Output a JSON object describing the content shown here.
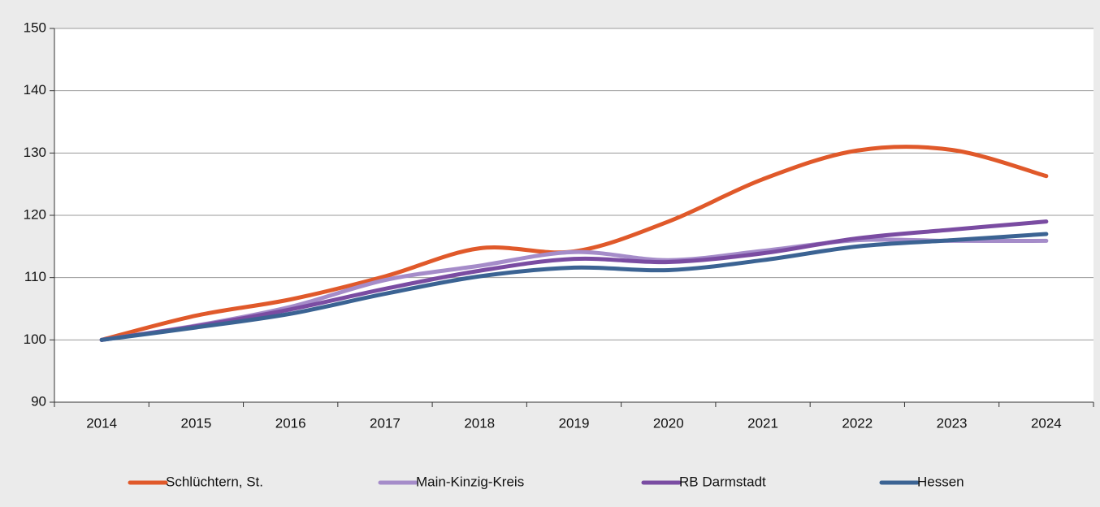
{
  "chart_data": {
    "type": "line",
    "categories": [
      "2014",
      "2015",
      "2016",
      "2017",
      "2018",
      "2019",
      "2020",
      "2021",
      "2022",
      "2023",
      "2024"
    ],
    "series": [
      {
        "name": "Schlüchtern, St.",
        "color": "#e0592a",
        "values": [
          100,
          103.9,
          106.5,
          110.2,
          114.7,
          114.2,
          119.0,
          125.8,
          130.4,
          130.5,
          126.3
        ]
      },
      {
        "name": "Main-Kinzig-Kreis",
        "color": "#a58cc9",
        "values": [
          100,
          102.3,
          105.3,
          109.6,
          111.9,
          114.1,
          112.8,
          114.3,
          116.0,
          115.9,
          115.9
        ]
      },
      {
        "name": "RB Darmstadt",
        "color": "#7a4ca2",
        "values": [
          100,
          102.2,
          104.9,
          108.2,
          111.1,
          113.0,
          112.5,
          113.9,
          116.3,
          117.7,
          119.0
        ]
      },
      {
        "name": "Hessen",
        "color": "#3b6393",
        "values": [
          100,
          102.0,
          104.2,
          107.4,
          110.2,
          111.6,
          111.2,
          112.8,
          115.0,
          116.0,
          117.0
        ]
      }
    ],
    "ylim": [
      90,
      150
    ],
    "yticks": [
      90,
      100,
      110,
      120,
      130,
      140,
      150
    ],
    "grid": true,
    "legend": "bottom"
  }
}
